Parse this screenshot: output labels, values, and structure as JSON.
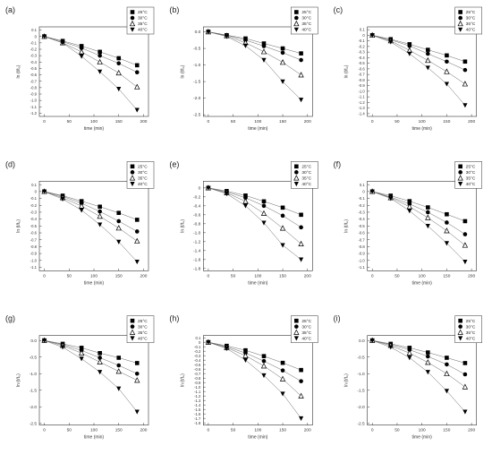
{
  "figure": {
    "panel_labels": [
      "(a)",
      "(b)",
      "(c)",
      "(d)",
      "(e)",
      "(f)",
      "(g)",
      "(h)",
      "(i)"
    ],
    "xlabel": "time (min)",
    "ylabel": "ln (t/t₀)",
    "legend_entries": [
      "25°C",
      "30°C",
      "35°C",
      "40°C"
    ],
    "series_colors": [
      "#000000",
      "#000000",
      "#000000",
      "#000000"
    ],
    "marker_shapes": [
      "square",
      "circle",
      "triangle-up",
      "triangle-down"
    ]
  },
  "chart_data": [
    {
      "type": "line",
      "panel": "(a)",
      "x": [
        0,
        37,
        75,
        112,
        150,
        187
      ],
      "series": [
        {
          "name": "25°C",
          "values": [
            0,
            -0.07,
            -0.15,
            -0.24,
            -0.34,
            -0.45
          ]
        },
        {
          "name": "30°C",
          "values": [
            0,
            -0.08,
            -0.18,
            -0.3,
            -0.42,
            -0.56
          ]
        },
        {
          "name": "35°C",
          "values": [
            0,
            -0.1,
            -0.24,
            -0.4,
            -0.57,
            -0.79
          ]
        },
        {
          "name": "40°C",
          "values": [
            0,
            -0.1,
            -0.31,
            -0.55,
            -0.82,
            -1.15
          ]
        }
      ],
      "yticks": [
        0.1,
        0,
        -0.1,
        -0.2,
        -0.3,
        -0.4,
        -0.5,
        -0.6,
        -0.7,
        -0.8,
        -0.9,
        -1.0,
        -1.1,
        -1.2
      ],
      "xticks": [
        0,
        50,
        100,
        150,
        200
      ],
      "xlim": [
        -10,
        210
      ],
      "ylim": [
        -1.25,
        0.15
      ]
    },
    {
      "type": "line",
      "panel": "(b)",
      "x": [
        0,
        37,
        75,
        112,
        150,
        187
      ],
      "series": [
        {
          "name": "25°C",
          "values": [
            0,
            -0.1,
            -0.2,
            -0.35,
            -0.5,
            -0.65
          ]
        },
        {
          "name": "30°C",
          "values": [
            0,
            -0.1,
            -0.25,
            -0.43,
            -0.63,
            -0.85
          ]
        },
        {
          "name": "35°C",
          "values": [
            0,
            -0.12,
            -0.33,
            -0.6,
            -0.92,
            -1.3
          ]
        },
        {
          "name": "40°C",
          "values": [
            0,
            -0.14,
            -0.42,
            -0.85,
            -1.5,
            -2.05
          ]
        }
      ],
      "yticks": [
        0.0,
        -0.5,
        -1.0,
        -1.5,
        -2.0,
        -2.5
      ],
      "xticks": [
        0,
        50,
        100,
        150,
        200
      ],
      "xlim": [
        -10,
        210
      ],
      "ylim": [
        -2.55,
        0.15
      ]
    },
    {
      "type": "line",
      "panel": "(c)",
      "x": [
        0,
        37,
        75,
        112,
        150,
        187
      ],
      "series": [
        {
          "name": "25°C",
          "values": [
            0,
            -0.07,
            -0.16,
            -0.26,
            -0.36,
            -0.47
          ]
        },
        {
          "name": "30°C",
          "values": [
            0,
            -0.08,
            -0.19,
            -0.33,
            -0.47,
            -0.62
          ]
        },
        {
          "name": "35°C",
          "values": [
            0,
            -0.1,
            -0.27,
            -0.45,
            -0.65,
            -0.87
          ]
        },
        {
          "name": "40°C",
          "values": [
            0,
            -0.12,
            -0.33,
            -0.58,
            -0.87,
            -1.25
          ]
        }
      ],
      "yticks": [
        0.1,
        0,
        -0.1,
        -0.2,
        -0.3,
        -0.4,
        -0.5,
        -0.6,
        -0.7,
        -0.8,
        -0.9,
        -1.0,
        -1.1,
        -1.2,
        -1.3,
        -1.4
      ],
      "xticks": [
        0,
        50,
        100,
        150,
        200
      ],
      "xlim": [
        -10,
        210
      ],
      "ylim": [
        -1.45,
        0.15
      ]
    },
    {
      "type": "line",
      "panel": "(d)",
      "x": [
        0,
        37,
        75,
        112,
        150,
        187
      ],
      "series": [
        {
          "name": "25°C",
          "values": [
            0,
            -0.06,
            -0.14,
            -0.22,
            -0.31,
            -0.41
          ]
        },
        {
          "name": "30°C",
          "values": [
            0,
            -0.07,
            -0.17,
            -0.29,
            -0.43,
            -0.58
          ]
        },
        {
          "name": "35°C",
          "values": [
            0,
            -0.09,
            -0.21,
            -0.36,
            -0.53,
            -0.72
          ]
        },
        {
          "name": "40°C",
          "values": [
            0,
            -0.11,
            -0.27,
            -0.48,
            -0.73,
            -1.02
          ]
        }
      ],
      "yticks": [
        0.1,
        0,
        -0.1,
        -0.2,
        -0.3,
        -0.4,
        -0.5,
        -0.6,
        -0.7,
        -0.8,
        -0.9,
        -1.0,
        -1.1
      ],
      "xticks": [
        0,
        50,
        100,
        150,
        200
      ],
      "xlim": [
        -10,
        210
      ],
      "ylim": [
        -1.15,
        0.15
      ]
    },
    {
      "type": "line",
      "panel": "(e)",
      "x": [
        0,
        37,
        75,
        112,
        150,
        187
      ],
      "series": [
        {
          "name": "25°C",
          "values": [
            0,
            -0.07,
            -0.17,
            -0.3,
            -0.44,
            -0.6
          ]
        },
        {
          "name": "30°C",
          "values": [
            0,
            -0.09,
            -0.22,
            -0.4,
            -0.62,
            -0.88
          ]
        },
        {
          "name": "35°C",
          "values": [
            0,
            -0.11,
            -0.3,
            -0.57,
            -0.9,
            -1.25
          ]
        },
        {
          "name": "40°C",
          "values": [
            0,
            -0.13,
            -0.4,
            -0.78,
            -1.28,
            -1.6
          ]
        }
      ],
      "yticks": [
        0.0,
        -0.2,
        -0.4,
        -0.6,
        -0.8,
        -1.0,
        -1.2,
        -1.4,
        -1.6,
        -1.8
      ],
      "xticks": [
        0,
        50,
        100,
        150,
        200
      ],
      "xlim": [
        -10,
        210
      ],
      "ylim": [
        -1.85,
        0.15
      ]
    },
    {
      "type": "line",
      "panel": "(f)",
      "x": [
        0,
        37,
        75,
        112,
        150,
        187
      ],
      "series": [
        {
          "name": "25°C",
          "values": [
            0,
            -0.06,
            -0.14,
            -0.23,
            -0.33,
            -0.43
          ]
        },
        {
          "name": "30°C",
          "values": [
            0,
            -0.08,
            -0.18,
            -0.3,
            -0.45,
            -0.62
          ]
        },
        {
          "name": "35°C",
          "values": [
            0,
            -0.09,
            -0.22,
            -0.38,
            -0.57,
            -0.78
          ]
        },
        {
          "name": "40°C",
          "values": [
            0,
            -0.1,
            -0.28,
            -0.5,
            -0.75,
            -1.02
          ]
        }
      ],
      "yticks": [
        0.1,
        0,
        -0.1,
        -0.2,
        -0.3,
        -0.4,
        -0.5,
        -0.6,
        -0.7,
        -0.8,
        -0.9,
        -1.0,
        -1.1
      ],
      "xticks": [
        0,
        50,
        100,
        150,
        200
      ],
      "xlim": [
        -10,
        210
      ],
      "ylim": [
        -1.15,
        0.15
      ]
    },
    {
      "type": "line",
      "panel": "(g)",
      "x": [
        0,
        37,
        75,
        112,
        150,
        187
      ],
      "series": [
        {
          "name": "25°C",
          "values": [
            0,
            -0.1,
            -0.22,
            -0.38,
            -0.52,
            -0.68
          ]
        },
        {
          "name": "30°C",
          "values": [
            0,
            -0.12,
            -0.3,
            -0.52,
            -0.75,
            -1.0
          ]
        },
        {
          "name": "35°C",
          "values": [
            0,
            -0.15,
            -0.38,
            -0.65,
            -0.93,
            -1.2
          ]
        },
        {
          "name": "40°C",
          "values": [
            0,
            -0.2,
            -0.55,
            -0.95,
            -1.45,
            -2.15
          ]
        }
      ],
      "yticks": [
        0.0,
        -0.5,
        -1.0,
        -1.5,
        -2.0,
        -2.5
      ],
      "xticks": [
        0,
        50,
        100,
        150,
        200
      ],
      "xlim": [
        -10,
        210
      ],
      "ylim": [
        -2.55,
        0.15
      ]
    },
    {
      "type": "line",
      "panel": "(h)",
      "x": [
        0,
        37,
        75,
        112,
        150,
        187
      ],
      "series": [
        {
          "name": "25°C",
          "values": [
            0,
            -0.08,
            -0.18,
            -0.31,
            -0.46,
            -0.62
          ]
        },
        {
          "name": "30°C",
          "values": [
            0,
            -0.1,
            -0.24,
            -0.42,
            -0.63,
            -0.87
          ]
        },
        {
          "name": "35°C",
          "values": [
            0,
            -0.12,
            -0.3,
            -0.53,
            -0.82,
            -1.2
          ]
        },
        {
          "name": "40°C",
          "values": [
            0,
            -0.14,
            -0.4,
            -0.74,
            -1.15,
            -1.7
          ]
        }
      ],
      "yticks": [
        0.1,
        0,
        -0.1,
        -0.2,
        -0.3,
        -0.4,
        -0.5,
        -0.6,
        -0.7,
        -0.8,
        -0.9,
        -1.0,
        -1.1,
        -1.2,
        -1.3,
        -1.4,
        -1.5,
        -1.6,
        -1.7,
        -1.8
      ],
      "xticks": [
        0,
        50,
        100,
        150,
        200
      ],
      "xlim": [
        -10,
        210
      ],
      "ylim": [
        -1.85,
        0.15
      ]
    },
    {
      "type": "line",
      "panel": "(i)",
      "x": [
        0,
        37,
        75,
        112,
        150,
        187
      ],
      "series": [
        {
          "name": "25°C",
          "values": [
            0,
            -0.1,
            -0.22,
            -0.36,
            -0.52,
            -0.68
          ]
        },
        {
          "name": "30°C",
          "values": [
            0,
            -0.12,
            -0.28,
            -0.48,
            -0.72,
            -1.02
          ]
        },
        {
          "name": "35°C",
          "values": [
            0,
            -0.15,
            -0.38,
            -0.66,
            -1.0,
            -1.4
          ]
        },
        {
          "name": "40°C",
          "values": [
            0,
            -0.2,
            -0.52,
            -0.95,
            -1.52,
            -2.15
          ]
        }
      ],
      "yticks": [
        0.0,
        -0.5,
        -1.0,
        -1.5,
        -2.0,
        -2.5
      ],
      "xticks": [
        0,
        50,
        100,
        150,
        200
      ],
      "xlim": [
        -10,
        210
      ],
      "ylim": [
        -2.55,
        0.15
      ]
    }
  ]
}
